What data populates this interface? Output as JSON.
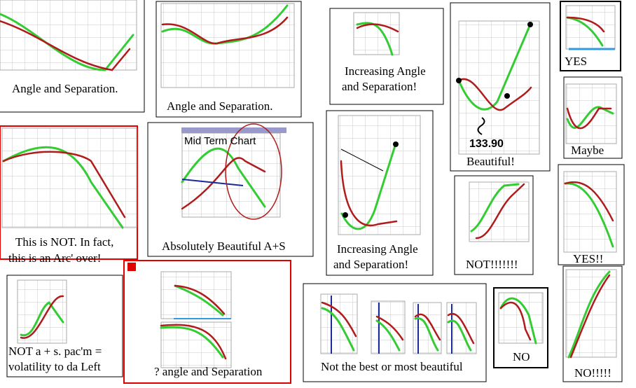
{
  "panels": [
    {
      "caption": [
        "Angle and Separation."
      ]
    },
    {
      "caption": [
        "Angle and Separation."
      ]
    },
    {
      "caption": [
        "Increasing Angle",
        "and Separation!"
      ]
    },
    {
      "reading": "133.90",
      "caption": [
        "Beautiful!"
      ]
    },
    {
      "caption": [
        "YES"
      ]
    },
    {
      "caption": [
        "Maybe"
      ]
    },
    {
      "caption": [
        "This is NOT.  In fact,",
        "this is an Arc' over!"
      ]
    },
    {
      "chart_title": "Mid Term Chart",
      "caption": [
        "Absolutely Beautiful A+S"
      ]
    },
    {
      "caption": [
        "Increasing Angle",
        "and Separation!"
      ]
    },
    {
      "caption": [
        "NOT!!!!!!!"
      ]
    },
    {
      "caption": [
        "YES!!"
      ]
    },
    {
      "caption": [
        "NOT a + s.  pac'm =",
        "volatility to da Left"
      ]
    },
    {
      "caption": [
        "?  angle and Separation"
      ]
    },
    {
      "caption": [
        "Not the best or most beautiful"
      ]
    },
    {
      "caption": [
        "NO"
      ]
    },
    {
      "caption": [
        "NO!!!!!"
      ]
    }
  ]
}
